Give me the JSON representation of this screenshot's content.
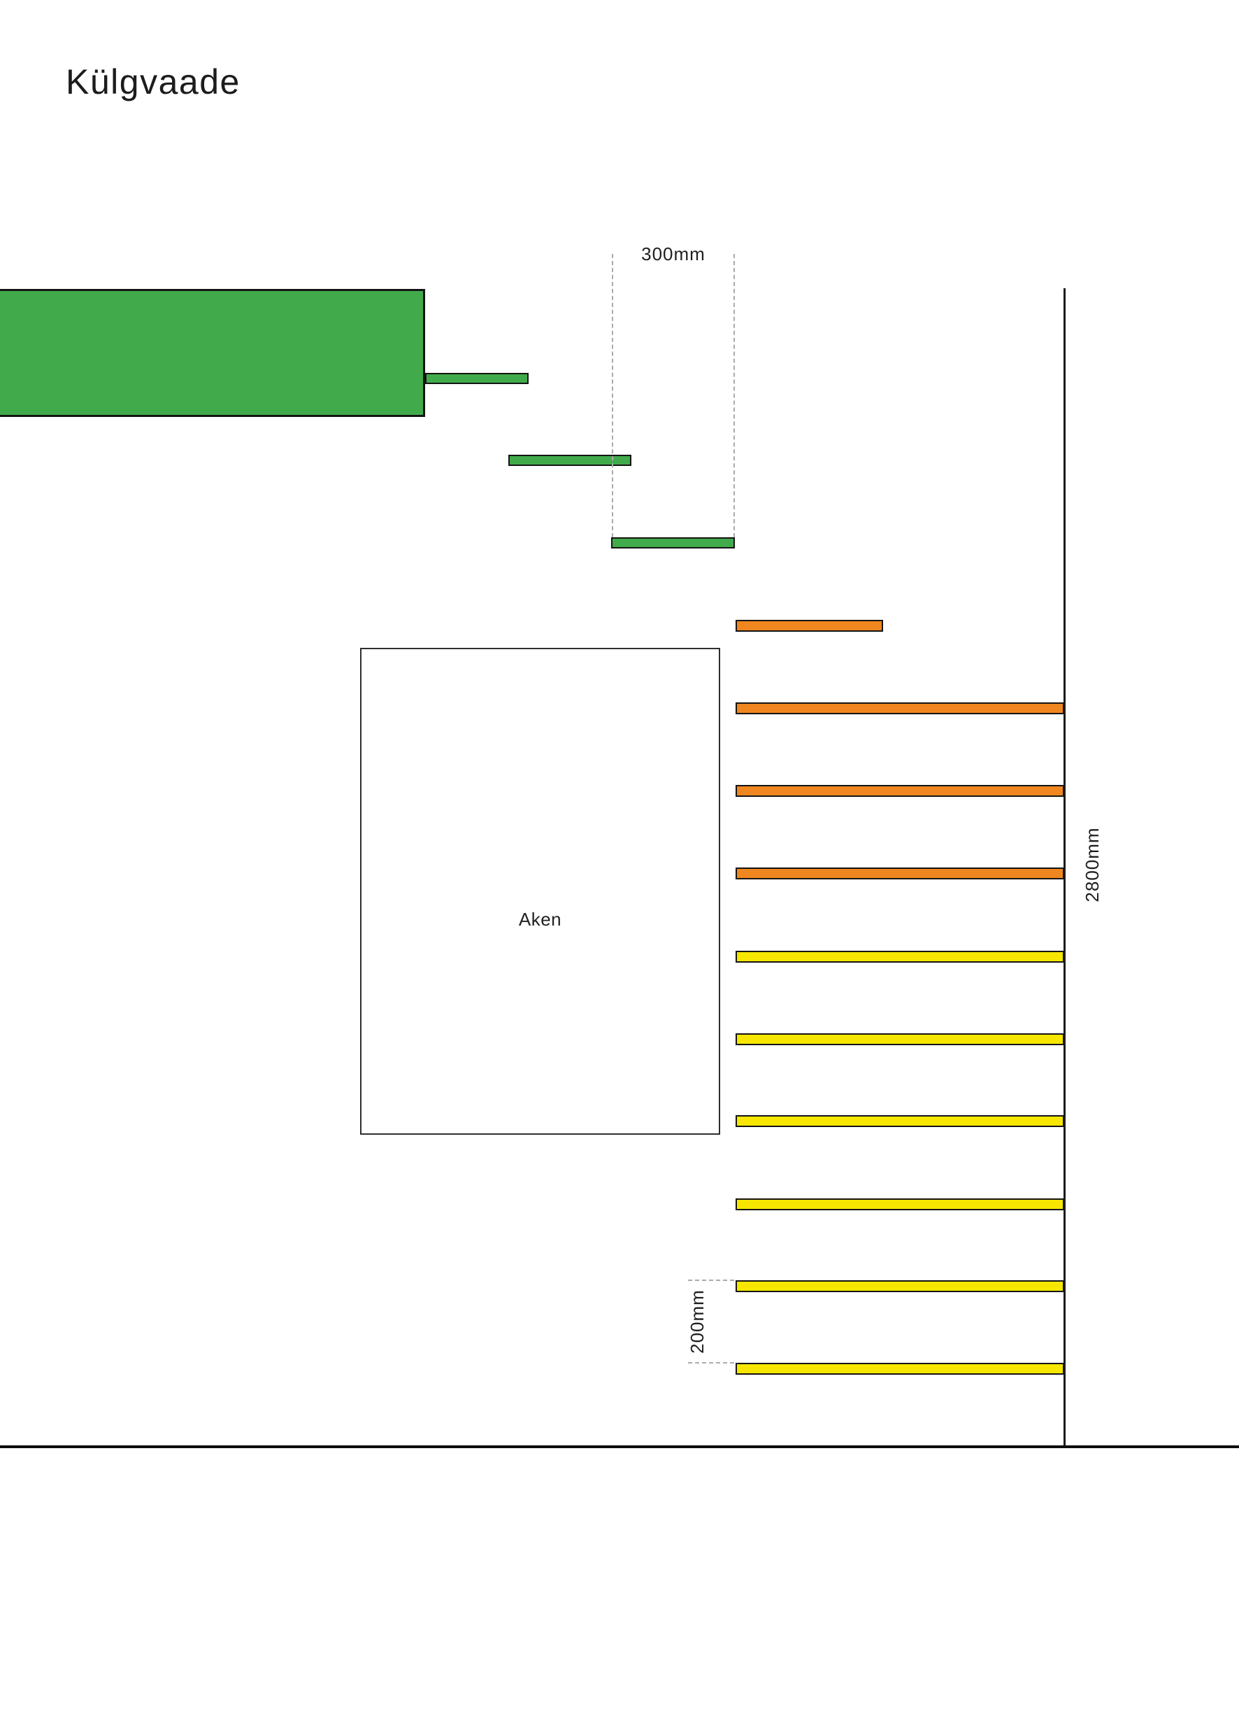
{
  "title": "Külgvaade",
  "diagram": {
    "window_label": "Aken",
    "dimensions": {
      "tread_depth": "300mm",
      "total_height": "2800mm",
      "riser_height": "200mm"
    },
    "colors": {
      "step_green": "#41AB4C",
      "step_orange": "#F0861F",
      "step_yellow": "#F7E700",
      "dash_gray": "#ABABAB",
      "line_black": "#141414"
    }
  }
}
